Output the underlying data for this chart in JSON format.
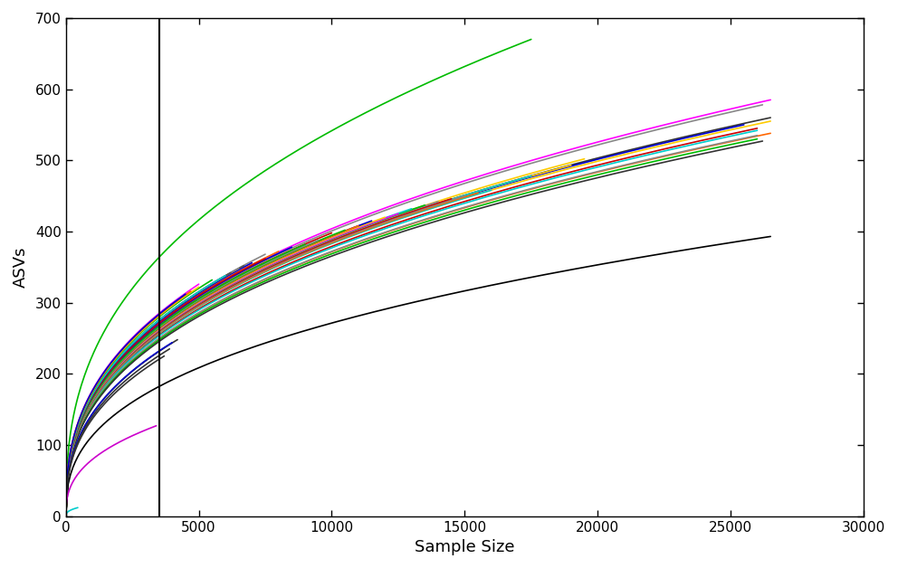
{
  "title": "",
  "xlabel": "Sample Size",
  "ylabel": "ASVs",
  "xlim": [
    0,
    30000
  ],
  "ylim": [
    0,
    700
  ],
  "xticks": [
    0,
    5000,
    10000,
    15000,
    20000,
    25000,
    30000
  ],
  "yticks": [
    0,
    100,
    200,
    300,
    400,
    500,
    600,
    700
  ],
  "vline_x": 3500,
  "background_color": "#ffffff",
  "curves": [
    {
      "max_x": 17500,
      "max_y": 670,
      "color": "#00bb00",
      "k_factor": 0.018
    },
    {
      "max_x": 26500,
      "max_y": 585,
      "color": "#ff00ff",
      "k_factor": 0.018
    },
    {
      "max_x": 26200,
      "max_y": 578,
      "color": "#888888",
      "k_factor": 0.018
    },
    {
      "max_x": 26500,
      "max_y": 560,
      "color": "#333333",
      "k_factor": 0.018
    },
    {
      "max_x": 26500,
      "max_y": 555,
      "color": "#ffcc00",
      "k_factor": 0.018
    },
    {
      "max_x": 25500,
      "max_y": 550,
      "color": "#0000cc",
      "k_factor": 0.018
    },
    {
      "max_x": 26000,
      "max_y": 545,
      "color": "#cc0000",
      "k_factor": 0.018
    },
    {
      "max_x": 26000,
      "max_y": 542,
      "color": "#00cccc",
      "k_factor": 0.018
    },
    {
      "max_x": 26500,
      "max_y": 538,
      "color": "#ff6600",
      "k_factor": 0.018
    },
    {
      "max_x": 26000,
      "max_y": 535,
      "color": "#888888",
      "k_factor": 0.018
    },
    {
      "max_x": 26000,
      "max_y": 530,
      "color": "#00bb00",
      "k_factor": 0.018
    },
    {
      "max_x": 26200,
      "max_y": 527,
      "color": "#333333",
      "k_factor": 0.018
    },
    {
      "max_x": 19500,
      "max_y": 502,
      "color": "#ffcc00",
      "k_factor": 0.018
    },
    {
      "max_x": 19000,
      "max_y": 493,
      "color": "#ffcc00",
      "k_factor": 0.018
    },
    {
      "max_x": 17500,
      "max_y": 478,
      "color": "#00cccc",
      "k_factor": 0.018
    },
    {
      "max_x": 16000,
      "max_y": 458,
      "color": "#00cccc",
      "k_factor": 0.018
    },
    {
      "max_x": 15500,
      "max_y": 454,
      "color": "#ff6600",
      "k_factor": 0.018
    },
    {
      "max_x": 15000,
      "max_y": 450,
      "color": "#888888",
      "k_factor": 0.018
    },
    {
      "max_x": 14500,
      "max_y": 446,
      "color": "#cc0000",
      "k_factor": 0.018
    },
    {
      "max_x": 14000,
      "max_y": 442,
      "color": "#888888",
      "k_factor": 0.018
    },
    {
      "max_x": 13500,
      "max_y": 437,
      "color": "#00bb00",
      "k_factor": 0.018
    },
    {
      "max_x": 13000,
      "max_y": 432,
      "color": "#00cccc",
      "k_factor": 0.018
    },
    {
      "max_x": 12500,
      "max_y": 425,
      "color": "#ff00ff",
      "k_factor": 0.018
    },
    {
      "max_x": 12000,
      "max_y": 420,
      "color": "#ffcc00",
      "k_factor": 0.018
    },
    {
      "max_x": 11500,
      "max_y": 415,
      "color": "#0000cc",
      "k_factor": 0.018
    },
    {
      "max_x": 11000,
      "max_y": 408,
      "color": "#ff6600",
      "k_factor": 0.018
    },
    {
      "max_x": 10500,
      "max_y": 402,
      "color": "#00bb00",
      "k_factor": 0.018
    },
    {
      "max_x": 10000,
      "max_y": 398,
      "color": "#cc0000",
      "k_factor": 0.018
    },
    {
      "max_x": 26500,
      "max_y": 393,
      "color": "#000000",
      "k_factor": 0.008
    },
    {
      "max_x": 9500,
      "max_y": 388,
      "color": "#888888",
      "k_factor": 0.018
    },
    {
      "max_x": 9000,
      "max_y": 382,
      "color": "#00bb00",
      "k_factor": 0.018
    },
    {
      "max_x": 8500,
      "max_y": 378,
      "color": "#0000cc",
      "k_factor": 0.018
    },
    {
      "max_x": 8000,
      "max_y": 372,
      "color": "#ff6600",
      "k_factor": 0.018
    },
    {
      "max_x": 7500,
      "max_y": 368,
      "color": "#888888",
      "k_factor": 0.018
    },
    {
      "max_x": 7500,
      "max_y": 362,
      "color": "#cc0000",
      "k_factor": 0.018
    },
    {
      "max_x": 7000,
      "max_y": 356,
      "color": "#0000cc",
      "k_factor": 0.018
    },
    {
      "max_x": 6700,
      "max_y": 352,
      "color": "#555555",
      "k_factor": 0.018
    },
    {
      "max_x": 6500,
      "max_y": 348,
      "color": "#888888",
      "k_factor": 0.018
    },
    {
      "max_x": 6200,
      "max_y": 342,
      "color": "#555555",
      "k_factor": 0.018
    },
    {
      "max_x": 6000,
      "max_y": 338,
      "color": "#00cccc",
      "k_factor": 0.018
    },
    {
      "max_x": 5500,
      "max_y": 332,
      "color": "#00bb00",
      "k_factor": 0.018
    },
    {
      "max_x": 5000,
      "max_y": 326,
      "color": "#ff00ff",
      "k_factor": 0.018
    },
    {
      "max_x": 5000,
      "max_y": 322,
      "color": "#ffcc00",
      "k_factor": 0.018
    },
    {
      "max_x": 4700,
      "max_y": 316,
      "color": "#ff6600",
      "k_factor": 0.018
    },
    {
      "max_x": 4500,
      "max_y": 312,
      "color": "#0000cc",
      "k_factor": 0.018
    },
    {
      "max_x": 4200,
      "max_y": 248,
      "color": "#333333",
      "k_factor": 0.018
    },
    {
      "max_x": 4000,
      "max_y": 244,
      "color": "#0000cc",
      "k_factor": 0.018
    },
    {
      "max_x": 3900,
      "max_y": 235,
      "color": "#333333",
      "k_factor": 0.018
    },
    {
      "max_x": 3700,
      "max_y": 225,
      "color": "#333333",
      "k_factor": 0.018
    },
    {
      "max_x": 3400,
      "max_y": 127,
      "color": "#cc00cc",
      "k_factor": 0.018
    },
    {
      "max_x": 450,
      "max_y": 12,
      "color": "#00cccc",
      "k_factor": 0.018
    }
  ]
}
